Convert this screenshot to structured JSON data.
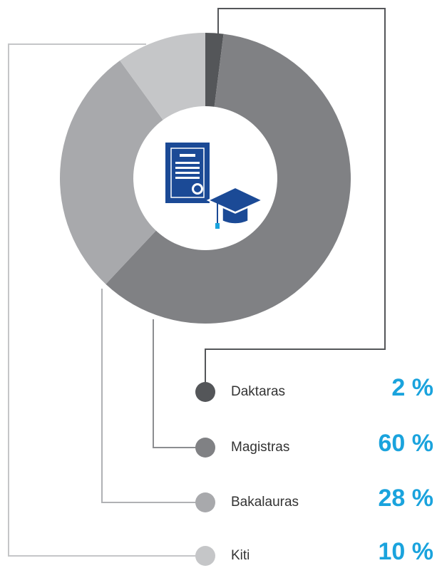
{
  "chart_data": {
    "type": "donut",
    "categories": [
      "Daktaras",
      "Magistras",
      "Bakalauras",
      "Kiti"
    ],
    "values": [
      2,
      60,
      28,
      10
    ],
    "value_labels": [
      "2 %",
      "60 %",
      "28 %",
      "10 %"
    ],
    "colors": [
      "#545659",
      "#808184",
      "#a8a9ac",
      "#c5c6c8"
    ]
  }
}
